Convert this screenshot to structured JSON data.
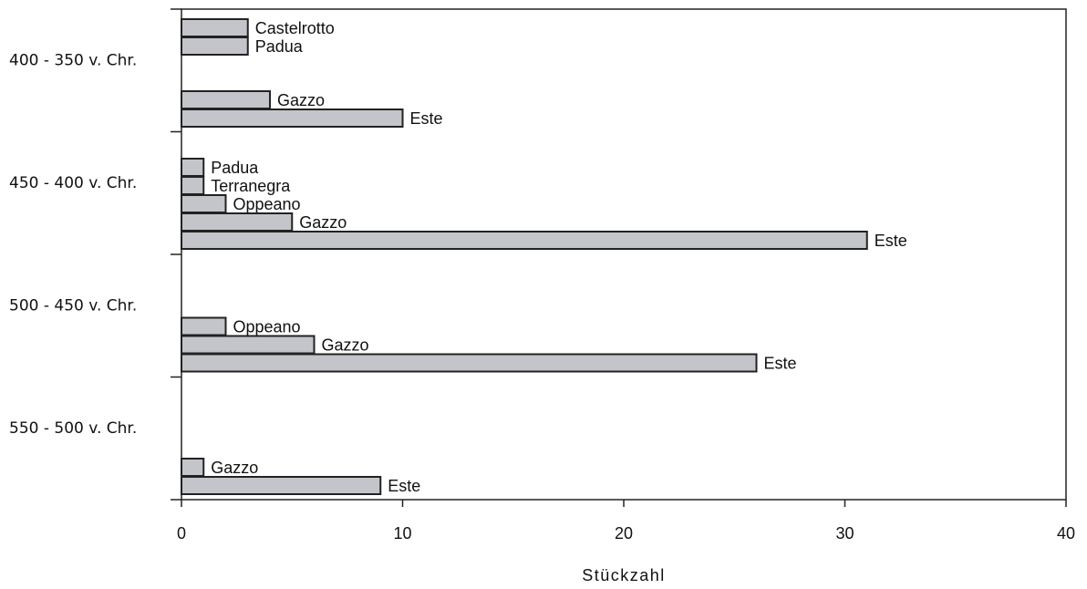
{
  "chart_data": {
    "type": "bar",
    "orientation": "horizontal",
    "xlabel": "Stückzahl",
    "xlim": [
      0,
      40
    ],
    "xticks": [
      0,
      10,
      20,
      30,
      40
    ],
    "grid": false,
    "bar_color": "#c3c5ca",
    "groups": [
      {
        "category": "400 - 350 v. Chr.",
        "bars": [
          {
            "label": "Castelrotto",
            "value": 3
          },
          {
            "label": "Padua",
            "value": 3
          },
          {
            "label": "Gazzo",
            "value": 4
          },
          {
            "label": "Este",
            "value": 10
          }
        ]
      },
      {
        "category": "450 - 400 v. Chr.",
        "bars": [
          {
            "label": "Padua",
            "value": 1
          },
          {
            "label": "Terranegra",
            "value": 1
          },
          {
            "label": "Oppeano",
            "value": 2
          },
          {
            "label": "Gazzo",
            "value": 5
          },
          {
            "label": "Este",
            "value": 31
          }
        ]
      },
      {
        "category": "500 - 450 v. Chr.",
        "bars": [
          {
            "label": "Oppeano",
            "value": 2
          },
          {
            "label": "Gazzo",
            "value": 6
          },
          {
            "label": "Este",
            "value": 26
          }
        ]
      },
      {
        "category": "550 - 500 v. Chr.",
        "bars": [
          {
            "label": "Gazzo",
            "value": 1
          },
          {
            "label": "Este",
            "value": 9
          }
        ]
      }
    ]
  }
}
